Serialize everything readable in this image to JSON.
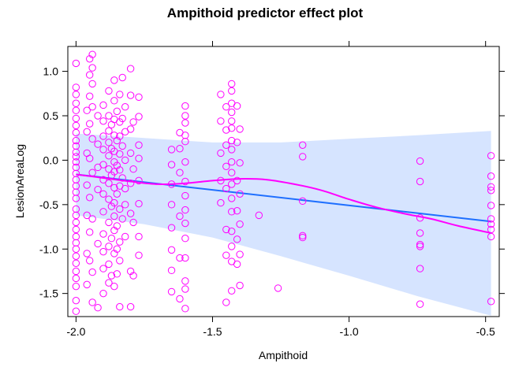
{
  "chart_data": {
    "type": "scatter",
    "title": "Ampithoid predictor effect plot",
    "xlabel": "Ampithoid",
    "ylabel": "LesionAreaLog",
    "xlim": [
      -2.03,
      -0.45
    ],
    "ylim": [
      -1.76,
      1.28
    ],
    "x_ticks": [
      -2.0,
      -1.5,
      -1.0,
      -0.5
    ],
    "x_tick_labels": [
      "-2.0",
      "-1.5",
      "-1.0",
      "-0.5"
    ],
    "y_ticks": [
      -1.5,
      -1.0,
      -0.5,
      0.0,
      0.5,
      1.0
    ],
    "y_tick_labels": [
      "-1.5",
      "-1.0",
      "-0.5",
      "0.0",
      "0.5",
      "1.0"
    ],
    "grid": false,
    "legend": "none",
    "colors": {
      "points": "#ff00ff",
      "fit_line": "#1f6fff",
      "confidence_band": "#d6e4ff",
      "smooth_line": "#ff00ff"
    },
    "fit_line": {
      "x": [
        -2.0,
        -0.48
      ],
      "y": [
        -0.16,
        -0.69
      ]
    },
    "confidence_band": {
      "x": [
        -2.0,
        -1.75,
        -1.5,
        -1.25,
        -1.0,
        -0.75,
        -0.48
      ],
      "upper": [
        0.3,
        0.25,
        0.2,
        0.2,
        0.24,
        0.28,
        0.33
      ],
      "lower": [
        -0.62,
        -0.72,
        -0.87,
        -1.08,
        -1.3,
        -1.53,
        -1.75
      ]
    },
    "smooth_line": {
      "x": [
        -2.0,
        -1.9,
        -1.8,
        -1.7,
        -1.6,
        -1.5,
        -1.4,
        -1.3,
        -1.2,
        -1.1,
        -1.0,
        -0.9,
        -0.8,
        -0.7,
        -0.6,
        -0.48
      ],
      "y": [
        -0.16,
        -0.2,
        -0.24,
        -0.27,
        -0.26,
        -0.23,
        -0.21,
        -0.22,
        -0.27,
        -0.34,
        -0.44,
        -0.53,
        -0.6,
        -0.66,
        -0.74,
        -0.82
      ]
    },
    "points": [
      {
        "x": -2.0,
        "y": 1.09
      },
      {
        "x": -2.0,
        "y": 0.82
      },
      {
        "x": -2.0,
        "y": 0.74
      },
      {
        "x": -2.0,
        "y": 0.64
      },
      {
        "x": -2.0,
        "y": 0.56
      },
      {
        "x": -2.0,
        "y": 0.47
      },
      {
        "x": -2.0,
        "y": 0.39
      },
      {
        "x": -2.0,
        "y": 0.31
      },
      {
        "x": -2.0,
        "y": 0.22
      },
      {
        "x": -2.0,
        "y": 0.16
      },
      {
        "x": -2.0,
        "y": 0.09
      },
      {
        "x": -2.0,
        "y": 0.04
      },
      {
        "x": -2.0,
        "y": -0.02
      },
      {
        "x": -2.0,
        "y": -0.08
      },
      {
        "x": -2.0,
        "y": -0.15
      },
      {
        "x": -2.0,
        "y": -0.22
      },
      {
        "x": -2.0,
        "y": -0.29
      },
      {
        "x": -2.0,
        "y": -0.36
      },
      {
        "x": -2.0,
        "y": -0.43
      },
      {
        "x": -2.0,
        "y": -0.55
      },
      {
        "x": -2.0,
        "y": -0.62
      },
      {
        "x": -2.0,
        "y": -0.7
      },
      {
        "x": -2.0,
        "y": -0.78
      },
      {
        "x": -2.0,
        "y": -0.86
      },
      {
        "x": -2.0,
        "y": -0.93
      },
      {
        "x": -2.0,
        "y": -1.0
      },
      {
        "x": -2.0,
        "y": -1.08
      },
      {
        "x": -2.0,
        "y": -1.16
      },
      {
        "x": -2.0,
        "y": -1.25
      },
      {
        "x": -2.0,
        "y": -1.33
      },
      {
        "x": -2.0,
        "y": -1.42
      },
      {
        "x": -2.0,
        "y": -1.58
      },
      {
        "x": -2.0,
        "y": -1.7
      },
      {
        "x": -1.96,
        "y": 0.56
      },
      {
        "x": -1.96,
        "y": 0.32
      },
      {
        "x": -1.96,
        "y": 0.08
      },
      {
        "x": -1.96,
        "y": -0.28
      },
      {
        "x": -1.96,
        "y": -0.62
      },
      {
        "x": -1.96,
        "y": -1.05
      },
      {
        "x": -1.96,
        "y": -1.4
      },
      {
        "x": -1.95,
        "y": 1.14
      },
      {
        "x": -1.95,
        "y": 0.96
      },
      {
        "x": -1.95,
        "y": 0.72
      },
      {
        "x": -1.95,
        "y": 0.41
      },
      {
        "x": -1.95,
        "y": 0.02
      },
      {
        "x": -1.95,
        "y": -0.42
      },
      {
        "x": -1.95,
        "y": -0.81
      },
      {
        "x": -1.95,
        "y": -1.13
      },
      {
        "x": -1.94,
        "y": 1.19
      },
      {
        "x": -1.94,
        "y": 1.04
      },
      {
        "x": -1.94,
        "y": 0.86
      },
      {
        "x": -1.94,
        "y": 0.6
      },
      {
        "x": -1.94,
        "y": 0.24
      },
      {
        "x": -1.94,
        "y": -0.14
      },
      {
        "x": -1.94,
        "y": -0.66
      },
      {
        "x": -1.94,
        "y": -1.26
      },
      {
        "x": -1.94,
        "y": -1.6
      },
      {
        "x": -1.92,
        "y": 0.5
      },
      {
        "x": -1.92,
        "y": 0.18
      },
      {
        "x": -1.92,
        "y": -0.08
      },
      {
        "x": -1.92,
        "y": -0.33
      },
      {
        "x": -1.92,
        "y": -0.94
      },
      {
        "x": -1.92,
        "y": -1.66
      },
      {
        "x": -1.9,
        "y": 0.62
      },
      {
        "x": -1.9,
        "y": 0.44
      },
      {
        "x": -1.9,
        "y": 0.27
      },
      {
        "x": -1.9,
        "y": 0.12
      },
      {
        "x": -1.9,
        "y": -0.05
      },
      {
        "x": -1.9,
        "y": -0.22
      },
      {
        "x": -1.9,
        "y": -0.38
      },
      {
        "x": -1.9,
        "y": -0.58
      },
      {
        "x": -1.9,
        "y": -0.83
      },
      {
        "x": -1.9,
        "y": -1.03
      },
      {
        "x": -1.9,
        "y": -1.22
      },
      {
        "x": -1.9,
        "y": -1.5
      },
      {
        "x": -1.88,
        "y": 0.78
      },
      {
        "x": -1.88,
        "y": 0.5
      },
      {
        "x": -1.88,
        "y": 0.33
      },
      {
        "x": -1.88,
        "y": 0.2
      },
      {
        "x": -1.88,
        "y": 0.05
      },
      {
        "x": -1.88,
        "y": -0.1
      },
      {
        "x": -1.88,
        "y": -0.26
      },
      {
        "x": -1.88,
        "y": -0.44
      },
      {
        "x": -1.88,
        "y": -0.7
      },
      {
        "x": -1.88,
        "y": -0.97
      },
      {
        "x": -1.88,
        "y": -1.17
      },
      {
        "x": -1.88,
        "y": -1.38
      },
      {
        "x": -1.87,
        "y": 0.4
      },
      {
        "x": -1.87,
        "y": 0.13
      },
      {
        "x": -1.87,
        "y": -0.17
      },
      {
        "x": -1.87,
        "y": -0.52
      },
      {
        "x": -1.87,
        "y": -0.88
      },
      {
        "x": -1.87,
        "y": -1.3
      },
      {
        "x": -1.86,
        "y": 0.9
      },
      {
        "x": -1.86,
        "y": 0.67
      },
      {
        "x": -1.86,
        "y": 0.46
      },
      {
        "x": -1.86,
        "y": 0.28
      },
      {
        "x": -1.86,
        "y": 0.1
      },
      {
        "x": -1.86,
        "y": -0.02
      },
      {
        "x": -1.86,
        "y": -0.13
      },
      {
        "x": -1.86,
        "y": -0.31
      },
      {
        "x": -1.86,
        "y": -0.48
      },
      {
        "x": -1.86,
        "y": -0.63
      },
      {
        "x": -1.86,
        "y": -0.79
      },
      {
        "x": -1.86,
        "y": -1.05
      },
      {
        "x": -1.86,
        "y": -1.42
      },
      {
        "x": -1.85,
        "y": 0.55
      },
      {
        "x": -1.85,
        "y": 0.22
      },
      {
        "x": -1.85,
        "y": -0.06
      },
      {
        "x": -1.85,
        "y": -0.38
      },
      {
        "x": -1.85,
        "y": -0.74
      },
      {
        "x": -1.85,
        "y": -1.0
      },
      {
        "x": -1.85,
        "y": -1.28
      },
      {
        "x": -1.84,
        "y": 0.74
      },
      {
        "x": -1.84,
        "y": 0.43
      },
      {
        "x": -1.84,
        "y": 0.27
      },
      {
        "x": -1.84,
        "y": 0.07
      },
      {
        "x": -1.84,
        "y": -0.11
      },
      {
        "x": -1.84,
        "y": -0.29
      },
      {
        "x": -1.84,
        "y": -0.55
      },
      {
        "x": -1.84,
        "y": -0.92
      },
      {
        "x": -1.84,
        "y": -1.13
      },
      {
        "x": -1.84,
        "y": -1.65
      },
      {
        "x": -1.83,
        "y": 0.93
      },
      {
        "x": -1.83,
        "y": 0.47
      },
      {
        "x": -1.83,
        "y": 0.16
      },
      {
        "x": -1.83,
        "y": -0.2
      },
      {
        "x": -1.83,
        "y": -0.66
      },
      {
        "x": -1.82,
        "y": 0.6
      },
      {
        "x": -1.82,
        "y": 0.32
      },
      {
        "x": -1.82,
        "y": 0.0
      },
      {
        "x": -1.82,
        "y": -0.32
      },
      {
        "x": -1.82,
        "y": -0.5
      },
      {
        "x": -1.82,
        "y": -0.86
      },
      {
        "x": -1.8,
        "y": 1.03
      },
      {
        "x": -1.8,
        "y": 0.73
      },
      {
        "x": -1.8,
        "y": 0.35
      },
      {
        "x": -1.8,
        "y": 0.08
      },
      {
        "x": -1.8,
        "y": -0.26
      },
      {
        "x": -1.8,
        "y": -0.6
      },
      {
        "x": -1.8,
        "y": -1.25
      },
      {
        "x": -1.8,
        "y": -1.65
      },
      {
        "x": -1.79,
        "y": 0.43
      },
      {
        "x": -1.79,
        "y": -0.1
      },
      {
        "x": -1.79,
        "y": -0.7
      },
      {
        "x": -1.79,
        "y": -1.3
      },
      {
        "x": -1.77,
        "y": 0.71
      },
      {
        "x": -1.77,
        "y": 0.49
      },
      {
        "x": -1.77,
        "y": 0.17
      },
      {
        "x": -1.77,
        "y": 0.02
      },
      {
        "x": -1.77,
        "y": -0.23
      },
      {
        "x": -1.77,
        "y": -0.49
      },
      {
        "x": -1.77,
        "y": -0.86
      },
      {
        "x": -1.77,
        "y": -1.07
      },
      {
        "x": -1.65,
        "y": 0.12
      },
      {
        "x": -1.65,
        "y": -0.05
      },
      {
        "x": -1.65,
        "y": -0.27
      },
      {
        "x": -1.65,
        "y": -0.5
      },
      {
        "x": -1.65,
        "y": -0.76
      },
      {
        "x": -1.65,
        "y": -1.01
      },
      {
        "x": -1.65,
        "y": -1.24
      },
      {
        "x": -1.65,
        "y": -1.48
      },
      {
        "x": -1.65,
        "y": -1.74
      },
      {
        "x": -1.62,
        "y": 0.31
      },
      {
        "x": -1.62,
        "y": 0.13
      },
      {
        "x": -1.62,
        "y": -0.14
      },
      {
        "x": -1.62,
        "y": -0.63
      },
      {
        "x": -1.62,
        "y": -1.1
      },
      {
        "x": -1.62,
        "y": -1.56
      },
      {
        "x": -1.6,
        "y": 0.61
      },
      {
        "x": -1.6,
        "y": 0.5
      },
      {
        "x": -1.6,
        "y": 0.42
      },
      {
        "x": -1.6,
        "y": 0.28
      },
      {
        "x": -1.6,
        "y": 0.21
      },
      {
        "x": -1.6,
        "y": -0.02
      },
      {
        "x": -1.6,
        "y": -0.24
      },
      {
        "x": -1.6,
        "y": -0.4
      },
      {
        "x": -1.6,
        "y": -0.56
      },
      {
        "x": -1.6,
        "y": -0.71
      },
      {
        "x": -1.6,
        "y": -0.88
      },
      {
        "x": -1.6,
        "y": -1.1
      },
      {
        "x": -1.6,
        "y": -1.36
      },
      {
        "x": -1.6,
        "y": -1.45
      },
      {
        "x": -1.6,
        "y": -1.67
      },
      {
        "x": -1.47,
        "y": 0.74
      },
      {
        "x": -1.47,
        "y": 0.44
      },
      {
        "x": -1.47,
        "y": 0.08
      },
      {
        "x": -1.47,
        "y": -0.23
      },
      {
        "x": -1.47,
        "y": -0.48
      },
      {
        "x": -1.45,
        "y": 0.6
      },
      {
        "x": -1.45,
        "y": 0.34
      },
      {
        "x": -1.45,
        "y": 0.17
      },
      {
        "x": -1.45,
        "y": -0.07
      },
      {
        "x": -1.45,
        "y": -0.32
      },
      {
        "x": -1.45,
        "y": -0.78
      },
      {
        "x": -1.45,
        "y": -1.07
      },
      {
        "x": -1.45,
        "y": -1.6
      },
      {
        "x": -1.43,
        "y": 0.86
      },
      {
        "x": -1.43,
        "y": 0.78
      },
      {
        "x": -1.43,
        "y": 0.64
      },
      {
        "x": -1.43,
        "y": 0.54
      },
      {
        "x": -1.43,
        "y": 0.44
      },
      {
        "x": -1.43,
        "y": 0.36
      },
      {
        "x": -1.43,
        "y": 0.22
      },
      {
        "x": -1.43,
        "y": 0.12
      },
      {
        "x": -1.43,
        "y": -0.02
      },
      {
        "x": -1.43,
        "y": -0.14
      },
      {
        "x": -1.43,
        "y": -0.27
      },
      {
        "x": -1.43,
        "y": -0.43
      },
      {
        "x": -1.43,
        "y": -0.58
      },
      {
        "x": -1.43,
        "y": -0.8
      },
      {
        "x": -1.43,
        "y": -0.97
      },
      {
        "x": -1.43,
        "y": -1.14
      },
      {
        "x": -1.43,
        "y": -1.47
      },
      {
        "x": -1.41,
        "y": 0.61
      },
      {
        "x": -1.41,
        "y": 0.2
      },
      {
        "x": -1.41,
        "y": -0.23
      },
      {
        "x": -1.41,
        "y": -0.57
      },
      {
        "x": -1.41,
        "y": -0.89
      },
      {
        "x": -1.41,
        "y": -1.17
      },
      {
        "x": -1.4,
        "y": 0.35
      },
      {
        "x": -1.4,
        "y": -0.03
      },
      {
        "x": -1.4,
        "y": -0.38
      },
      {
        "x": -1.4,
        "y": -0.72
      },
      {
        "x": -1.4,
        "y": -1.06
      },
      {
        "x": -1.4,
        "y": -1.41
      },
      {
        "x": -1.33,
        "y": -0.62
      },
      {
        "x": -1.26,
        "y": -1.44
      },
      {
        "x": -1.17,
        "y": 0.17
      },
      {
        "x": -1.17,
        "y": 0.04
      },
      {
        "x": -1.17,
        "y": -0.46
      },
      {
        "x": -1.17,
        "y": -0.85
      },
      {
        "x": -1.17,
        "y": -0.87
      },
      {
        "x": -0.74,
        "y": -0.01
      },
      {
        "x": -0.74,
        "y": -0.24
      },
      {
        "x": -0.74,
        "y": -0.65
      },
      {
        "x": -0.74,
        "y": -0.82
      },
      {
        "x": -0.74,
        "y": -0.95
      },
      {
        "x": -0.74,
        "y": -0.97
      },
      {
        "x": -0.74,
        "y": -1.22
      },
      {
        "x": -0.74,
        "y": -1.62
      },
      {
        "x": -0.48,
        "y": 0.05
      },
      {
        "x": -0.48,
        "y": -0.18
      },
      {
        "x": -0.48,
        "y": -0.3
      },
      {
        "x": -0.48,
        "y": -0.34
      },
      {
        "x": -0.48,
        "y": -0.51
      },
      {
        "x": -0.48,
        "y": -0.66
      },
      {
        "x": -0.48,
        "y": -0.72
      },
      {
        "x": -0.48,
        "y": -0.78
      },
      {
        "x": -0.48,
        "y": -0.86
      },
      {
        "x": -0.48,
        "y": -1.59
      }
    ]
  }
}
